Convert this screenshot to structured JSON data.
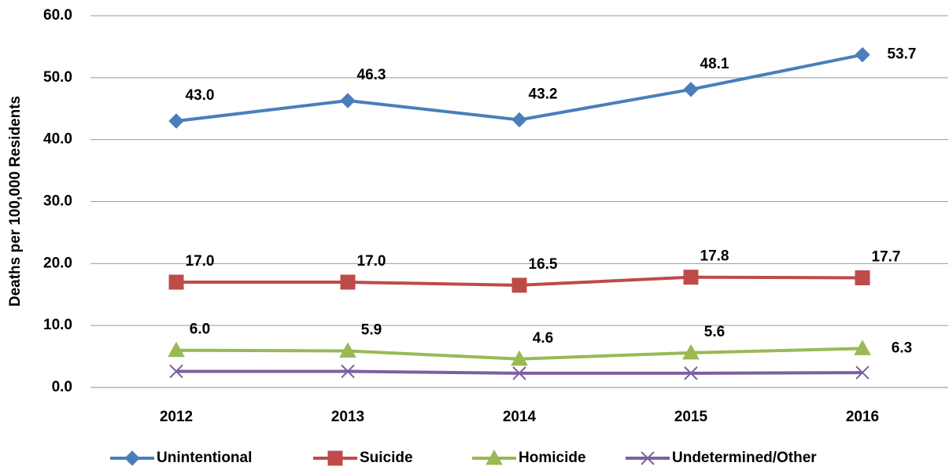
{
  "chart_data": {
    "type": "line",
    "y_label": "Deaths per 100,000 Residents",
    "categories": [
      "2012",
      "2013",
      "2014",
      "2015",
      "2016"
    ],
    "series": [
      {
        "name": "Unintentional",
        "color": "#4a7ebb",
        "marker": "diamond",
        "values": [
          43.0,
          46.3,
          43.2,
          48.1,
          53.7
        ],
        "value_labels": [
          "43.0",
          "46.3",
          "43.2",
          "48.1",
          "53.7"
        ]
      },
      {
        "name": "Suicide",
        "color": "#be4b48",
        "marker": "square",
        "values": [
          17.0,
          17.0,
          16.5,
          17.8,
          17.7
        ],
        "value_labels": [
          "17.0",
          "17.0",
          "16.5",
          "17.8",
          "17.7"
        ]
      },
      {
        "name": "Homicide",
        "color": "#98b954",
        "marker": "triangle",
        "values": [
          6.0,
          5.9,
          4.6,
          5.6,
          6.3
        ],
        "value_labels": [
          "6.0",
          "5.9",
          "4.6",
          "5.6",
          "6.3"
        ]
      },
      {
        "name": "Undetermined/Other",
        "color": "#7d60a0",
        "marker": "x",
        "values": [
          2.6,
          2.6,
          2.3,
          2.3,
          2.4
        ]
      }
    ],
    "ylim": [
      0,
      60
    ],
    "yticks": [
      {
        "value": 0,
        "label": "0.0"
      },
      {
        "value": 10,
        "label": "10.0"
      },
      {
        "value": 20,
        "label": "20.0"
      },
      {
        "value": 30,
        "label": "30.0"
      },
      {
        "value": 40,
        "label": "40.0"
      },
      {
        "value": 50,
        "label": "50.0"
      },
      {
        "value": 60,
        "label": "60.0"
      }
    ],
    "grid": true,
    "legend": "bottom"
  }
}
